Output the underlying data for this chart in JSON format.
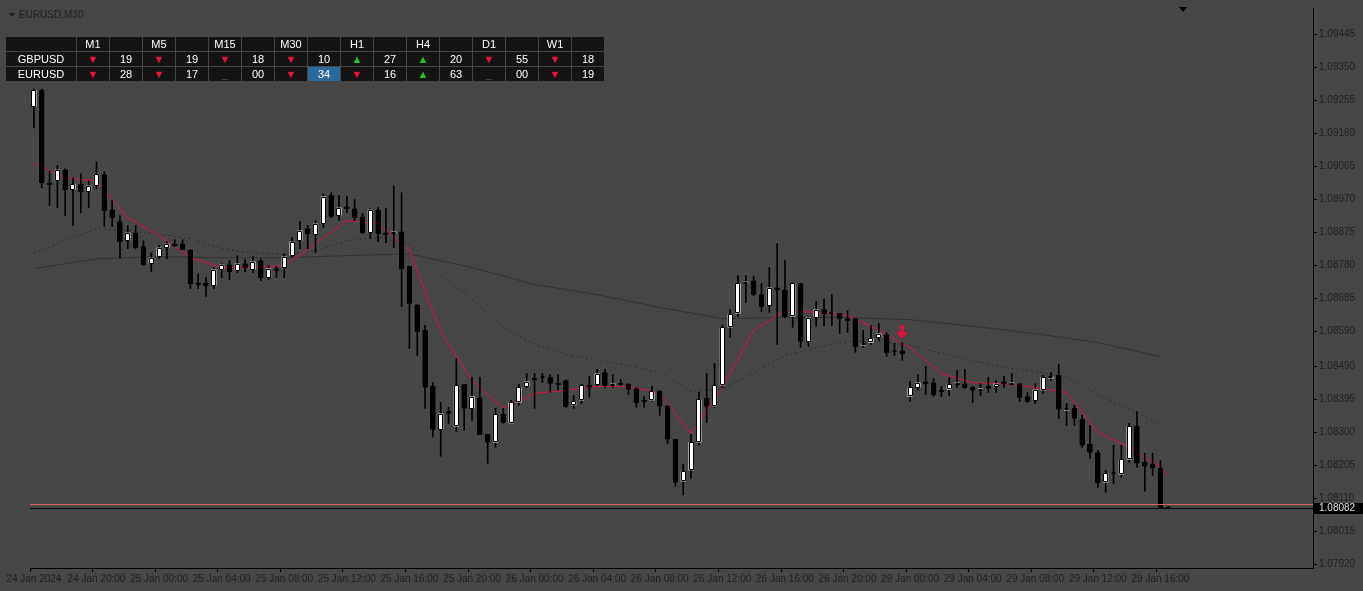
{
  "chart_data": [
    {
      "type": "candlestick",
      "title": "EURUSD,M30",
      "categories": [
        "24 Jan 2024",
        null,
        null,
        null,
        null,
        null,
        null,
        null,
        "24 Jan 20:00",
        null,
        null,
        null,
        null,
        null,
        null,
        null,
        "25 Jan 00:00",
        null,
        null,
        null,
        null,
        null,
        null,
        null,
        "25 Jan 04:00",
        null,
        null,
        null,
        null,
        null,
        null,
        null,
        "25 Jan 08:00",
        null,
        null,
        null,
        null,
        null,
        null,
        null,
        "25 Jan 12:00",
        null,
        null,
        null,
        null,
        null,
        null,
        null,
        "25 Jan 16:00",
        null,
        null,
        null,
        null,
        null,
        null,
        null,
        "25 Jan 20:00",
        null,
        null,
        null,
        null,
        null,
        null,
        null,
        "26 Jan 00:00",
        null,
        null,
        null,
        null,
        null,
        null,
        null,
        "26 Jan 04:00",
        null,
        null,
        null,
        null,
        null,
        null,
        null,
        "26 Jan 08:00",
        null,
        null,
        null,
        null,
        null,
        null,
        null,
        "26 Jan 12:00",
        null,
        null,
        null,
        null,
        null,
        null,
        null,
        "26 Jan 16:00",
        null,
        null,
        null,
        null,
        null,
        null,
        null,
        "26 Jan 20:00",
        null,
        null,
        null,
        null,
        null,
        null,
        null,
        "29 Jan 00:00",
        null,
        null,
        null,
        null,
        null,
        null,
        null,
        "29 Jan 04:00",
        null,
        null,
        null,
        null,
        null,
        null,
        null,
        "29 Jan 08:00",
        null,
        null,
        null,
        null,
        null,
        null,
        null,
        "29 Jan 12:00",
        null,
        null,
        null,
        null,
        null,
        null,
        null,
        "29 Jan 16:00",
        null,
        null,
        null,
        null,
        null,
        null,
        null,
        null,
        null,
        null,
        null,
        null,
        null,
        null,
        null,
        null,
        null,
        null,
        null
      ],
      "colors": [
        "#ffffff",
        "#000000",
        "#000000",
        "#ffffff",
        "#000000",
        "#ffffff",
        "#000000",
        "#ffffff",
        "#ffffff",
        "#000000",
        "#000000",
        "#000000",
        "#ffffff",
        "#000000",
        "#000000",
        "#ffffff",
        "#ffffff",
        "#ffffff",
        "#000000",
        "#000000",
        "#000000",
        "#000000",
        "#000000",
        "#ffffff",
        "#ffffff",
        "#000000",
        "#ffffff",
        "#000000",
        "#ffffff",
        "#000000",
        "#ffffff",
        "#000000",
        "#ffffff",
        "#ffffff",
        "#ffffff",
        "#000000",
        "#ffffff",
        "#ffffff",
        "#000000",
        "#ffffff",
        "#000000",
        "#000000",
        "#000000",
        "#ffffff",
        "#000000",
        "#000000",
        "#ffffff",
        "#000000",
        "#000000",
        "#000000",
        "#000000",
        "#000000",
        "#ffffff",
        "#000000",
        "#ffffff",
        "#000000",
        "#ffffff",
        "#000000",
        "#000000",
        "#ffffff",
        "#000000",
        "#ffffff",
        "#ffffff",
        "#ffffff",
        "#000000",
        "#ffffff",
        "#000000",
        "#000000",
        "#000000",
        "#ffffff",
        "#ffffff",
        "#000000",
        "#ffffff",
        "#000000",
        "#ffffff",
        "#000000",
        "#000000",
        "#000000",
        "#000000",
        "#ffffff",
        "#000000",
        "#000000",
        "#000000",
        "#ffffff",
        "#ffffff",
        "#ffffff",
        "#000000",
        "#ffffff",
        "#ffffff",
        "#ffffff",
        "#ffffff",
        "#ffffff",
        "#000000",
        "#000000",
        "#ffffff",
        "#000000",
        "#000000",
        "#ffffff",
        "#000000",
        "#ffffff",
        "#ffffff",
        "#000000",
        "#ffffff",
        "#000000",
        "#000000",
        "#000000",
        "#ffffff",
        "#ffffff",
        "#ffffff",
        "#000000",
        "#ffffff",
        "#000000",
        "#ffffff",
        "#ffffff",
        "#000000",
        "#000000",
        "#000000",
        "#ffffff",
        "#ffffff",
        "#000000",
        "#000000",
        "#ffffff",
        "#000000",
        "#ffffff",
        "#000000",
        "#ffffff",
        "#000000",
        "#000000",
        "#ffffff",
        "#ffffff",
        "#ffffff",
        "#000000",
        "#ffffff",
        "#000000",
        "#000000",
        "#000000",
        "#000000",
        "#ffffff",
        "#ffffff",
        "#ffffff",
        "#ffffff",
        "#000000",
        "#000000",
        "#000000",
        "#000000",
        "#000000",
        null,
        null,
        null,
        null,
        null,
        null,
        null,
        null,
        null,
        null,
        null,
        null,
        null,
        null,
        null,
        null,
        null,
        null
      ],
      "ohlc": [
        [
          1.09236,
          1.09287,
          1.09175,
          1.09284
        ],
        [
          1.09284,
          1.09287,
          1.09003,
          1.09017
        ],
        [
          1.09017,
          1.09052,
          1.08952,
          1.09012
        ],
        [
          1.09023,
          1.09067,
          1.08946,
          1.09055
        ],
        [
          1.09055,
          1.09058,
          1.08923,
          1.08997
        ],
        [
          1.08997,
          1.09032,
          1.08895,
          1.09014
        ],
        [
          1.09014,
          1.09043,
          1.08931,
          1.08992
        ],
        [
          1.08992,
          1.09023,
          1.08946,
          1.09009
        ],
        [
          1.09009,
          1.09078,
          1.09,
          1.09043
        ],
        [
          1.09041,
          1.09049,
          1.08892,
          1.08937
        ],
        [
          1.0894,
          1.08966,
          1.08892,
          1.08917
        ],
        [
          1.08906,
          1.08923,
          1.08802,
          1.08848
        ],
        [
          1.08851,
          1.08895,
          1.08828,
          1.08874
        ],
        [
          1.08874,
          1.08895,
          1.08828,
          1.08831
        ],
        [
          1.08834,
          1.08851,
          1.0878,
          1.08783
        ],
        [
          1.08785,
          1.08816,
          1.08762,
          1.08802
        ],
        [
          1.08805,
          1.08837,
          1.08799,
          1.08831
        ],
        [
          1.08831,
          1.08848,
          1.08799,
          1.08842
        ],
        [
          1.08842,
          1.08854,
          1.08834,
          1.08837
        ],
        [
          1.08842,
          1.08854,
          1.08825,
          1.08825
        ],
        [
          1.08825,
          1.08825,
          1.08713,
          1.08727
        ],
        [
          1.0873,
          1.08756,
          1.08713,
          1.08727
        ],
        [
          1.0873,
          1.08745,
          1.08691,
          1.08722
        ],
        [
          1.08722,
          1.08774,
          1.08713,
          1.08768
        ],
        [
          1.08768,
          1.08785,
          1.08745,
          1.08782
        ],
        [
          1.08782,
          1.08794,
          1.08739,
          1.08762
        ],
        [
          1.08765,
          1.08808,
          1.08759,
          1.08785
        ],
        [
          1.08785,
          1.08797,
          1.08762,
          1.08774
        ],
        [
          1.08768,
          1.08805,
          1.08759,
          1.08791
        ],
        [
          1.08794,
          1.08799,
          1.08736,
          1.08745
        ],
        [
          1.08745,
          1.08779,
          1.08739,
          1.08771
        ],
        [
          1.08771,
          1.08777,
          1.08745,
          1.08768
        ],
        [
          1.08774,
          1.08813,
          1.08745,
          1.08805
        ],
        [
          1.08808,
          1.0886,
          1.08805,
          1.08848
        ],
        [
          1.08851,
          1.08906,
          1.08828,
          1.0888
        ],
        [
          1.08886,
          1.08895,
          1.08828,
          1.08871
        ],
        [
          1.08869,
          1.08909,
          1.08816,
          1.089
        ],
        [
          1.089,
          1.08986,
          1.08889,
          1.08978
        ],
        [
          1.08981,
          1.08989,
          1.08917,
          1.0892
        ],
        [
          1.08923,
          1.08981,
          1.08909,
          1.08946
        ],
        [
          1.08949,
          1.08978,
          1.08931,
          1.08943
        ],
        [
          1.08943,
          1.08969,
          1.08909,
          1.08917
        ],
        [
          1.0892,
          1.08929,
          1.08871,
          1.08874
        ],
        [
          1.08874,
          1.08943,
          1.08857,
          1.0894
        ],
        [
          1.0894,
          1.08946,
          1.08848,
          1.08871
        ],
        [
          1.08874,
          1.08943,
          1.08845,
          1.08871
        ],
        [
          1.08871,
          1.09009,
          1.08831,
          1.08877
        ],
        [
          1.08877,
          1.08989,
          1.08662,
          1.08771
        ],
        [
          1.08777,
          1.08777,
          1.08541,
          1.0867
        ],
        [
          1.08667,
          1.08667,
          1.08521,
          1.0859
        ],
        [
          1.08593,
          1.08608,
          1.08369,
          1.08429
        ],
        [
          1.08432,
          1.08443,
          1.08286,
          1.08308
        ],
        [
          1.08308,
          1.08386,
          1.08231,
          1.08354
        ],
        [
          1.0836,
          1.08372,
          1.08326,
          1.08354
        ],
        [
          1.08317,
          1.08512,
          1.08303,
          1.08435
        ],
        [
          1.08438,
          1.08438,
          1.08306,
          1.08369
        ],
        [
          1.08369,
          1.08458,
          1.08334,
          1.08403
        ],
        [
          1.084,
          1.08458,
          1.08294,
          1.08294
        ],
        [
          1.08294,
          1.08294,
          1.08211,
          1.08271
        ],
        [
          1.08271,
          1.08369,
          1.08257,
          1.08352
        ],
        [
          1.08352,
          1.08369,
          1.08326,
          1.08328
        ],
        [
          1.08326,
          1.08392,
          1.08326,
          1.08386
        ],
        [
          1.08386,
          1.08438,
          1.08378,
          1.08429
        ],
        [
          1.08432,
          1.08469,
          1.08429,
          1.08446
        ],
        [
          1.08455,
          1.08469,
          1.08369,
          1.08452
        ],
        [
          1.08458,
          1.08469,
          1.08443,
          1.08458
        ],
        [
          1.08458,
          1.08466,
          1.08415,
          1.0844
        ],
        [
          1.0844,
          1.08466,
          1.08421,
          1.08438
        ],
        [
          1.08449,
          1.08452,
          1.08372,
          1.08375
        ],
        [
          1.08378,
          1.08406,
          1.08369,
          1.08389
        ],
        [
          1.08392,
          1.08438,
          1.08383,
          1.08435
        ],
        [
          1.08435,
          1.08461,
          1.08401,
          1.08429
        ],
        [
          1.08438,
          1.08481,
          1.08435,
          1.08469
        ],
        [
          1.08472,
          1.08481,
          1.08429,
          1.08435
        ],
        [
          1.08435,
          1.08466,
          1.08429,
          1.0844
        ],
        [
          1.0844,
          1.08452,
          1.08435,
          1.08438
        ],
        [
          1.08438,
          1.0844,
          1.08409,
          1.08423
        ],
        [
          1.08426,
          1.08429,
          1.08372,
          1.08386
        ],
        [
          1.08392,
          1.08403,
          1.08372,
          1.08389
        ],
        [
          1.08392,
          1.08432,
          1.08389,
          1.08418
        ],
        [
          1.08418,
          1.08421,
          1.08349,
          1.08375
        ],
        [
          1.08375,
          1.08378,
          1.08268,
          1.0828
        ],
        [
          1.0828,
          1.0828,
          1.08145,
          1.08156
        ],
        [
          1.08159,
          1.08208,
          1.0812,
          1.08188
        ],
        [
          1.08191,
          1.08294,
          1.08168,
          1.08271
        ],
        [
          1.08271,
          1.08415,
          1.08263,
          1.08395
        ],
        [
          1.08398,
          1.08469,
          1.08328,
          1.08375
        ],
        [
          1.08375,
          1.08498,
          1.08372,
          1.08435
        ],
        [
          1.08435,
          1.08608,
          1.08429,
          1.08602
        ],
        [
          1.08602,
          1.08653,
          1.08573,
          1.08639
        ],
        [
          1.08642,
          1.08751,
          1.08633,
          1.08728
        ],
        [
          1.08728,
          1.08751,
          1.08673,
          1.08733
        ],
        [
          1.08736,
          1.08748,
          1.08693,
          1.08696
        ],
        [
          1.08696,
          1.08728,
          1.08647,
          1.08662
        ],
        [
          1.08665,
          1.08774,
          1.08645,
          1.08716
        ],
        [
          1.08716,
          1.08843,
          1.08553,
          1.0871
        ],
        [
          1.0871,
          1.08794,
          1.0863,
          1.08633
        ],
        [
          1.08633,
          1.0873,
          1.08602,
          1.08728
        ],
        [
          1.08728,
          1.08728,
          1.08544,
          1.08561
        ],
        [
          1.08561,
          1.08633,
          1.08547,
          1.0863
        ],
        [
          1.0863,
          1.08676,
          1.08604,
          1.08653
        ],
        [
          1.08653,
          1.08684,
          1.08607,
          1.08642
        ],
        [
          1.08642,
          1.08696,
          1.08607,
          1.08642
        ],
        [
          1.08642,
          1.08642,
          1.08584,
          1.08627
        ],
        [
          1.08627,
          1.0865,
          1.08587,
          1.08624
        ],
        [
          1.08627,
          1.08627,
          1.0853,
          1.08547
        ],
        [
          1.0855,
          1.08593,
          1.08544,
          1.08556
        ],
        [
          1.08558,
          1.08608,
          1.08553,
          1.0857
        ],
        [
          1.08573,
          1.08613,
          1.08564,
          1.08584
        ],
        [
          1.08581,
          1.08587,
          1.08518,
          1.0853
        ],
        [
          1.08533,
          1.08556,
          1.08521,
          1.08533
        ],
        [
          1.08535,
          1.08558,
          1.08507,
          1.08527
        ],
        [
          1.08403,
          1.08446,
          1.08389,
          1.08429
        ],
        [
          1.08429,
          1.08466,
          1.08421,
          1.08443
        ],
        [
          1.08446,
          1.08489,
          1.08409,
          1.0844
        ],
        [
          1.08443,
          1.08455,
          1.08403,
          1.08409
        ],
        [
          1.08421,
          1.08432,
          1.08403,
          1.08418
        ],
        [
          1.08423,
          1.08458,
          1.08406,
          1.08438
        ],
        [
          1.0844,
          1.08478,
          1.08429,
          1.0844
        ],
        [
          1.0844,
          1.08481,
          1.08426,
          1.08429
        ],
        [
          1.08429,
          1.08432,
          1.08386,
          1.08421
        ],
        [
          1.08421,
          1.0844,
          1.08406,
          1.08426
        ],
        [
          1.08432,
          1.08458,
          1.08415,
          1.08426
        ],
        [
          1.08432,
          1.08449,
          1.08415,
          1.0844
        ],
        [
          1.08446,
          1.08461,
          1.08429,
          1.0844
        ],
        [
          1.0844,
          1.08469,
          1.0844,
          1.0844
        ],
        [
          1.0844,
          1.0844,
          1.08389,
          1.08401
        ],
        [
          1.08403,
          1.08415,
          1.08386,
          1.08389
        ],
        [
          1.08392,
          1.0844,
          1.08383,
          1.08423
        ],
        [
          1.08421,
          1.08464,
          1.08412,
          1.08458
        ],
        [
          1.08455,
          1.08472,
          1.08449,
          1.08461
        ],
        [
          1.08464,
          1.08495,
          1.0834,
          1.08366
        ],
        [
          1.08363,
          1.08383,
          1.0832,
          1.08369
        ],
        [
          1.08369,
          1.08378,
          1.0832,
          1.0834
        ],
        [
          1.08337,
          1.08349,
          1.08257,
          1.08263
        ],
        [
          1.08266,
          1.0832,
          1.08225,
          1.08242
        ],
        [
          1.08242,
          1.08248,
          1.08142,
          1.08156
        ],
        [
          1.08156,
          1.08191,
          1.08128,
          1.08182
        ],
        [
          1.08182,
          1.08263,
          1.08153,
          1.08182
        ],
        [
          1.08179,
          1.08263,
          1.08171,
          1.08222
        ],
        [
          1.08222,
          1.08326,
          1.08214,
          1.08317
        ],
        [
          1.08317,
          1.0836,
          1.08199,
          1.08211
        ],
        [
          1.08214,
          1.0824,
          1.08131,
          1.08202
        ],
        [
          1.08208,
          1.0824,
          1.08176,
          1.08197
        ],
        [
          1.08197,
          1.0822,
          1.08082,
          1.08082
        ],
        [
          1.08082,
          1.08087,
          1.08079,
          1.08082
        ],
        null,
        null,
        null,
        null,
        null,
        null,
        null,
        null,
        null,
        null,
        null,
        null,
        null,
        null,
        null,
        null,
        null,
        null
      ],
      "series": [
        {
          "type": "line",
          "color": "#dc143c",
          "line_style": "solid",
          "values": [
            1.09072,
            null,
            null,
            null,
            1.09032,
            null,
            null,
            null,
            1.09023,
            null,
            null,
            null,
            1.08917,
            null,
            null,
            null,
            1.08866,
            null,
            null,
            null,
            1.08802,
            null,
            null,
            null,
            1.08774,
            null,
            null,
            null,
            1.08774,
            null,
            null,
            null,
            1.08779,
            null,
            null,
            null,
            1.08842,
            null,
            null,
            null,
            1.08909,
            null,
            null,
            null,
            1.089,
            null,
            null,
            null,
            1.08822,
            null,
            null,
            null,
            1.0859,
            null,
            null,
            null,
            1.08449,
            null,
            null,
            null,
            1.08369,
            null,
            null,
            null,
            1.08412,
            null,
            null,
            null,
            1.08421,
            null,
            null,
            null,
            1.08432,
            null,
            null,
            null,
            1.08432,
            null,
            null,
            null,
            1.08412,
            null,
            null,
            null,
            1.08297,
            null,
            null,
            null,
            1.08429,
            null,
            null,
            null,
            1.08593,
            null,
            null,
            null,
            1.0865,
            null,
            null,
            null,
            1.08645,
            null,
            null,
            null,
            1.08636,
            null,
            null,
            null,
            1.08593,
            null,
            null,
            null,
            1.08544,
            null,
            null,
            null,
            1.08469,
            null,
            null,
            null,
            1.08443,
            null,
            null,
            null,
            1.0844,
            null,
            null,
            null,
            1.08429,
            null,
            null,
            null,
            1.08415,
            null,
            null,
            null,
            1.083,
            null,
            null,
            null,
            1.08257,
            null,
            null,
            null,
            1.08199,
            1.08176,
            null,
            null,
            null,
            null,
            null,
            null,
            null,
            null,
            null,
            null,
            null,
            null,
            null,
            null,
            null,
            null,
            null,
            null
          ]
        },
        {
          "type": "line",
          "color": "#2e2e2e",
          "line_style": "dotted",
          "values": [
            1.08814,
            null,
            null,
            null,
            1.08851,
            null,
            null,
            null,
            1.08886,
            null,
            null,
            null,
            1.0888,
            null,
            null,
            null,
            1.08869,
            null,
            null,
            null,
            1.08857,
            null,
            null,
            null,
            1.08828,
            null,
            null,
            null,
            1.08816,
            null,
            null,
            null,
            1.08811,
            null,
            null,
            null,
            1.08822,
            null,
            null,
            null,
            1.08851,
            null,
            null,
            null,
            1.0886,
            null,
            null,
            null,
            1.08842,
            null,
            null,
            null,
            1.08751,
            null,
            null,
            null,
            1.08682,
            null,
            null,
            null,
            1.08602,
            null,
            null,
            null,
            1.08553,
            null,
            null,
            null,
            1.08524,
            null,
            null,
            null,
            1.08507,
            null,
            null,
            null,
            1.08492,
            null,
            null,
            null,
            1.08472,
            null,
            null,
            null,
            1.08418,
            null,
            null,
            null,
            1.08424,
            null,
            null,
            null,
            1.08472,
            null,
            null,
            null,
            1.08521,
            null,
            null,
            null,
            1.08544,
            null,
            null,
            null,
            1.08561,
            null,
            null,
            null,
            1.08561,
            null,
            null,
            null,
            1.0855,
            null,
            null,
            null,
            1.08527,
            null,
            null,
            null,
            1.08507,
            null,
            null,
            null,
            1.08487,
            null,
            null,
            null,
            1.08475,
            null,
            null,
            null,
            1.08458,
            null,
            null,
            null,
            1.08409,
            null,
            null,
            null,
            1.08366,
            null,
            null,
            null,
            1.08323,
            null,
            null,
            null,
            null,
            null,
            null,
            null,
            null,
            null,
            null,
            null,
            null,
            null,
            null,
            null,
            null,
            null,
            null,
            null
          ]
        },
        {
          "type": "line",
          "color": "#333333",
          "line_style": "solid",
          "values": [
            1.08771,
            null,
            null,
            null,
            null,
            null,
            null,
            null,
            1.08799,
            null,
            null,
            null,
            null,
            null,
            null,
            null,
            1.08805,
            null,
            null,
            null,
            null,
            null,
            null,
            null,
            1.08802,
            null,
            null,
            null,
            null,
            null,
            null,
            null,
            1.08802,
            null,
            null,
            null,
            null,
            null,
            null,
            null,
            1.08808,
            null,
            null,
            null,
            null,
            null,
            null,
            null,
            1.08813,
            null,
            null,
            null,
            null,
            null,
            null,
            null,
            1.08774,
            null,
            null,
            null,
            null,
            null,
            null,
            null,
            1.08725,
            null,
            null,
            null,
            null,
            null,
            null,
            null,
            1.08696,
            null,
            null,
            null,
            null,
            null,
            null,
            null,
            1.08659,
            null,
            null,
            null,
            null,
            null,
            null,
            null,
            1.08627,
            null,
            null,
            null,
            null,
            null,
            null,
            null,
            1.0863,
            null,
            null,
            null,
            null,
            null,
            null,
            null,
            1.0863,
            null,
            null,
            null,
            null,
            null,
            null,
            null,
            1.08624,
            null,
            null,
            null,
            null,
            null,
            null,
            null,
            1.08605,
            null,
            null,
            null,
            null,
            null,
            null,
            null,
            1.08584,
            null,
            null,
            null,
            null,
            null,
            null,
            null,
            1.08558,
            null,
            null,
            null,
            null,
            null,
            null,
            null,
            1.08518,
            null,
            null,
            null,
            null,
            null,
            null,
            null,
            null,
            null,
            null,
            null,
            null,
            null,
            null,
            null,
            null,
            null,
            null,
            null
          ]
        }
      ],
      "ref_lines": [
        {
          "axis": "y",
          "value": 1.08095,
          "color": "#e06060"
        },
        {
          "axis": "y",
          "value": 1.08082,
          "label": "1.08082",
          "color": "#000000"
        }
      ],
      "ylim": [
        1.0791,
        1.0952
      ],
      "yticks": [
        1.09445,
        {
          "value": 1.0935,
          "label": "1.09350"
        },
        1.09255,
        {
          "value": 1.0916,
          "label": "1.09160"
        },
        1.09065,
        {
          "value": 1.0897,
          "label": "1.08970"
        },
        1.08875,
        {
          "value": 1.0878,
          "label": "1.08780"
        },
        1.08685,
        {
          "value": 1.0859,
          "label": "1.08590"
        },
        {
          "value": 1.0849,
          "label": "1.08490"
        },
        1.08395,
        {
          "value": 1.083,
          "label": "1.08300"
        },
        1.08205,
        {
          "value": 1.0811,
          "label": "1.08110"
        },
        1.08015,
        {
          "value": 1.0792,
          "label": "1.07920"
        }
      ]
    },
    {
      "type": "other",
      "categories": [
        "M1",
        null,
        "M5",
        null,
        "M15",
        null,
        "M30",
        null,
        "H1",
        null,
        "H4",
        null,
        "D1",
        null,
        "W1",
        null
      ],
      "y_categories": [
        "GBPUSD",
        "EURUSD"
      ],
      "cell_labels": [
        [
          "▼",
          "19",
          "▼",
          "19",
          "▼",
          "18",
          "▼",
          "10",
          "▲",
          "27",
          "▲",
          "20",
          "▼",
          "55",
          "▼",
          "18"
        ],
        [
          "▼",
          "28",
          "▼",
          "17",
          "_",
          "00",
          "▼",
          "34",
          "▼",
          "16",
          "▲",
          "63",
          "_",
          "00",
          "▼",
          "19"
        ]
      ],
      "colors": [
        [
          "#e8163c",
          "#ffffff",
          "#e8163c",
          "#ffffff",
          "#e8163c",
          "#ffffff",
          "#e8163c",
          "#ffffff",
          "#22c322",
          "#ffffff",
          "#22c322",
          "#ffffff",
          "#e8163c",
          "#ffffff",
          "#e8163c",
          "#ffffff"
        ],
        [
          "#e8163c",
          "#ffffff",
          "#e8163c",
          "#ffffff",
          "#555555",
          "#ffffff",
          "#e8163c",
          [
            "#ffffff",
            "#2b6a9b"
          ],
          "#e8163c",
          "#ffffff",
          "#22c322",
          "#ffffff",
          "#555555",
          "#ffffff",
          "#e8163c",
          "#ffffff"
        ]
      ]
    }
  ]
}
